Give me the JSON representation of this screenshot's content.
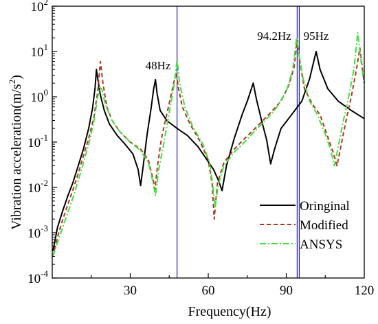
{
  "chart_data": {
    "type": "line",
    "xlabel": "Frequency(Hz)",
    "ylabel": "Vibration acceleration(m/s²)",
    "ylabel_parts": {
      "main": "Vibration acceleration(m/s",
      "sup": "2",
      "end": ")"
    },
    "xlim": [
      0,
      120
    ],
    "ylim": [
      0.0001,
      100
    ],
    "yscale": "log",
    "x_ticks": [
      {
        "value": 30,
        "label": "30"
      },
      {
        "value": 60,
        "label": "60"
      },
      {
        "value": 90,
        "label": "90"
      },
      {
        "value": 120,
        "label": "120"
      }
    ],
    "y_ticks": [
      {
        "value": 0.0001,
        "base": "10",
        "exp": "-4"
      },
      {
        "value": 0.001,
        "base": "10",
        "exp": "-3"
      },
      {
        "value": 0.01,
        "base": "10",
        "exp": "-2"
      },
      {
        "value": 0.1,
        "base": "10",
        "exp": "-1"
      },
      {
        "value": 1,
        "base": "10",
        "exp": "0"
      },
      {
        "value": 10,
        "base": "10",
        "exp": "1"
      },
      {
        "value": 100,
        "base": "10",
        "exp": "2"
      }
    ],
    "vlines": [
      {
        "x": 48,
        "label": "48Hz",
        "color": "#1a1aa6"
      },
      {
        "x": 94.2,
        "label": "94.2Hz",
        "color": "#1a1aa6"
      },
      {
        "x": 95,
        "label": "95Hz",
        "color": "#1a1aa6"
      }
    ],
    "legend_position": "bottom-right",
    "series": [
      {
        "name": "Oringinal",
        "color": "#000000",
        "dash": "solid",
        "points": [
          [
            0.3,
            0.0004
          ],
          [
            2,
            0.0013
          ],
          [
            4,
            0.003
          ],
          [
            6,
            0.0065
          ],
          [
            8,
            0.013
          ],
          [
            10,
            0.03
          ],
          [
            12,
            0.07
          ],
          [
            14,
            0.2
          ],
          [
            15.5,
            0.55
          ],
          [
            16.5,
            1.6
          ],
          [
            17,
            4.0
          ],
          [
            17.5,
            2.5
          ],
          [
            18.5,
            1.1
          ],
          [
            20,
            0.5
          ],
          [
            22,
            0.25
          ],
          [
            25,
            0.14
          ],
          [
            28,
            0.09
          ],
          [
            31,
            0.055
          ],
          [
            33,
            0.025
          ],
          [
            34,
            0.011
          ],
          [
            35,
            0.03
          ],
          [
            36.5,
            0.15
          ],
          [
            38,
            0.55
          ],
          [
            39,
            1.5
          ],
          [
            39.7,
            2.4
          ],
          [
            40.3,
            1.2
          ],
          [
            41.5,
            0.5
          ],
          [
            44,
            0.3
          ],
          [
            48,
            0.2
          ],
          [
            52,
            0.14
          ],
          [
            56,
            0.08
          ],
          [
            59,
            0.045
          ],
          [
            62,
            0.025
          ],
          [
            64,
            0.014
          ],
          [
            65.3,
            0.0085
          ],
          [
            67,
            0.03
          ],
          [
            70,
            0.12
          ],
          [
            73,
            0.4
          ],
          [
            75,
            0.8
          ],
          [
            77.3,
            2.0
          ],
          [
            78.5,
            0.9
          ],
          [
            80.5,
            0.3
          ],
          [
            82.5,
            0.11
          ],
          [
            84,
            0.033
          ],
          [
            85.5,
            0.07
          ],
          [
            88,
            0.2
          ],
          [
            92,
            0.4
          ],
          [
            96,
            0.8
          ],
          [
            99,
            2.5
          ],
          [
            101.5,
            10
          ],
          [
            103,
            4.0
          ],
          [
            106,
            1.5
          ],
          [
            110,
            0.8
          ],
          [
            115,
            0.5
          ],
          [
            120,
            0.33
          ]
        ]
      },
      {
        "name": "Modified",
        "color": "#b5331c",
        "dash": "dashed",
        "points": [
          [
            0.3,
            0.0003
          ],
          [
            2,
            0.0008
          ],
          [
            4,
            0.0019
          ],
          [
            6,
            0.0042
          ],
          [
            8,
            0.009
          ],
          [
            10,
            0.02
          ],
          [
            12,
            0.05
          ],
          [
            14,
            0.12
          ],
          [
            16,
            0.35
          ],
          [
            17.5,
            1.3
          ],
          [
            18.5,
            6.0
          ],
          [
            19.5,
            2.0
          ],
          [
            21,
            0.6
          ],
          [
            23,
            0.3
          ],
          [
            26,
            0.17
          ],
          [
            30,
            0.1
          ],
          [
            34,
            0.07
          ],
          [
            37,
            0.04
          ],
          [
            38.8,
            0.015
          ],
          [
            39.5,
            0.009
          ],
          [
            40.5,
            0.03
          ],
          [
            42,
            0.12
          ],
          [
            44,
            0.4
          ],
          [
            46,
            1.3
          ],
          [
            47.6,
            3.5
          ],
          [
            48.6,
            1.5
          ],
          [
            50,
            0.6
          ],
          [
            53,
            0.25
          ],
          [
            57,
            0.1
          ],
          [
            60,
            0.04
          ],
          [
            61.5,
            0.012
          ],
          [
            62.3,
            0.002
          ],
          [
            63.5,
            0.012
          ],
          [
            66,
            0.035
          ],
          [
            70,
            0.07
          ],
          [
            74,
            0.12
          ],
          [
            78,
            0.2
          ],
          [
            81,
            0.3
          ],
          [
            84,
            0.45
          ],
          [
            88,
            0.8
          ],
          [
            91,
            1.8
          ],
          [
            93,
            4.5
          ],
          [
            94.2,
            18
          ],
          [
            95.2,
            6
          ],
          [
            97,
            1.5
          ],
          [
            100,
            0.7
          ],
          [
            103,
            0.4
          ],
          [
            106,
            0.13
          ],
          [
            108,
            0.06
          ],
          [
            109.5,
            0.03
          ],
          [
            111,
            0.08
          ],
          [
            113,
            0.3
          ],
          [
            115,
            1.0
          ],
          [
            117,
            4
          ],
          [
            118.3,
            12
          ],
          [
            119.3,
            4
          ],
          [
            120,
            2
          ]
        ]
      },
      {
        "name": "ANSYS",
        "color": "#3fe23f",
        "dash": "dashdot",
        "points": [
          [
            0.3,
            0.0003
          ],
          [
            2,
            0.0006
          ],
          [
            4,
            0.0013
          ],
          [
            6,
            0.0028
          ],
          [
            8,
            0.006
          ],
          [
            10,
            0.014
          ],
          [
            12,
            0.035
          ],
          [
            14,
            0.09
          ],
          [
            16,
            0.28
          ],
          [
            17.5,
            1.0
          ],
          [
            18.2,
            1.6
          ],
          [
            19,
            1.5
          ],
          [
            20.5,
            0.65
          ],
          [
            23,
            0.3
          ],
          [
            26,
            0.17
          ],
          [
            30,
            0.1
          ],
          [
            34,
            0.065
          ],
          [
            37,
            0.035
          ],
          [
            38.5,
            0.015
          ],
          [
            39.7,
            0.0065
          ],
          [
            41,
            0.025
          ],
          [
            43,
            0.1
          ],
          [
            45,
            0.45
          ],
          [
            47,
            2.0
          ],
          [
            48,
            6.5
          ],
          [
            49,
            2.0
          ],
          [
            51,
            0.6
          ],
          [
            54,
            0.22
          ],
          [
            58,
            0.09
          ],
          [
            60.5,
            0.035
          ],
          [
            61.8,
            0.011
          ],
          [
            62.6,
            0.0035
          ],
          [
            63.8,
            0.011
          ],
          [
            66,
            0.03
          ],
          [
            70,
            0.06
          ],
          [
            74,
            0.1
          ],
          [
            78,
            0.18
          ],
          [
            82,
            0.3
          ],
          [
            86,
            0.55
          ],
          [
            90,
            1.3
          ],
          [
            92.5,
            4.0
          ],
          [
            94,
            20
          ],
          [
            95,
            8
          ],
          [
            96.5,
            2.5
          ],
          [
            99,
            0.8
          ],
          [
            102,
            0.4
          ],
          [
            105,
            0.15
          ],
          [
            107,
            0.07
          ],
          [
            108.5,
            0.03
          ],
          [
            110,
            0.08
          ],
          [
            112,
            0.3
          ],
          [
            114,
            1.0
          ],
          [
            116,
            4
          ],
          [
            117.5,
            26
          ],
          [
            118.5,
            8
          ],
          [
            119.5,
            3
          ],
          [
            120,
            2
          ]
        ]
      }
    ]
  }
}
